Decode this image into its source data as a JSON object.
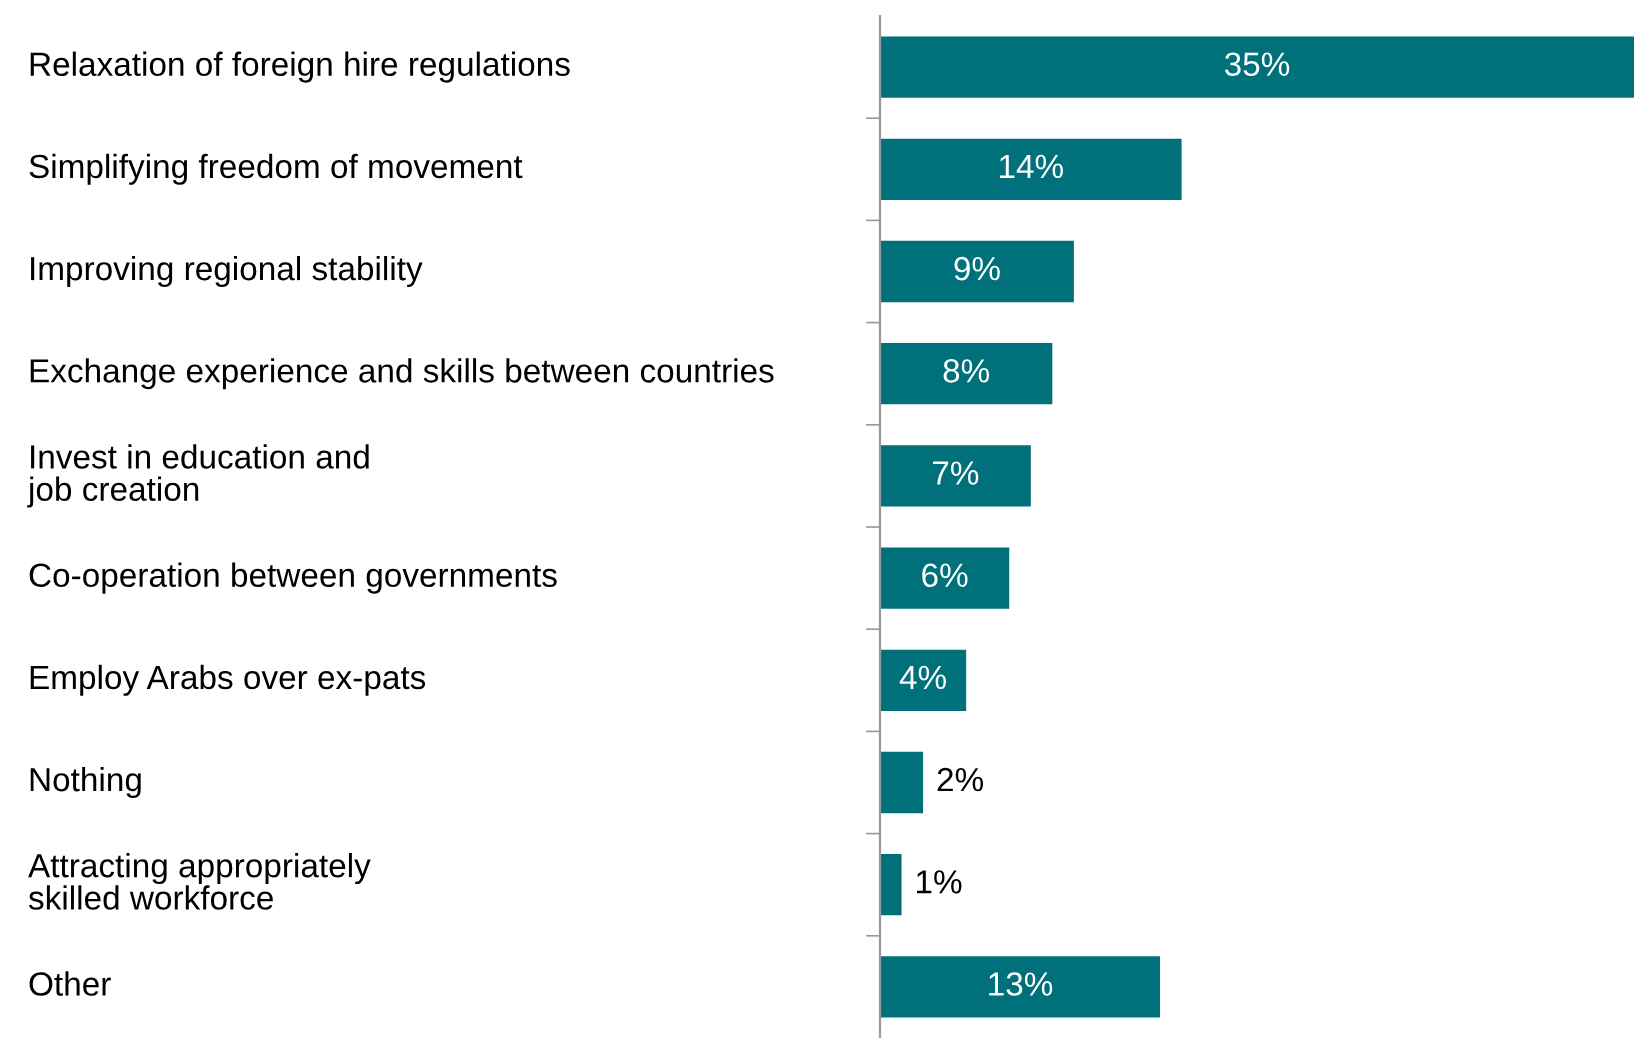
{
  "chart_data": {
    "type": "bar",
    "orientation": "horizontal",
    "categories": [
      "Relaxation of foreign hire regulations",
      "Simplifying freedom of movement",
      "Improving regional stability",
      "Exchange experience and skills between countries",
      "Invest in education and\njob creation",
      "Co-operation between governments",
      "Employ Arabs over ex-pats",
      "Nothing",
      "Attracting appropriately\nskilled workforce",
      "Other"
    ],
    "values": [
      35,
      14,
      9,
      8,
      7,
      6,
      4,
      2,
      1,
      13
    ],
    "value_labels": [
      "35%",
      "14%",
      "9%",
      "8%",
      "7%",
      "6%",
      "4%",
      "2%",
      "1%",
      "13%"
    ],
    "color": "#00707a",
    "xlim": [
      0,
      35
    ],
    "tick_labels": "y",
    "grid": false,
    "legend": false
  }
}
